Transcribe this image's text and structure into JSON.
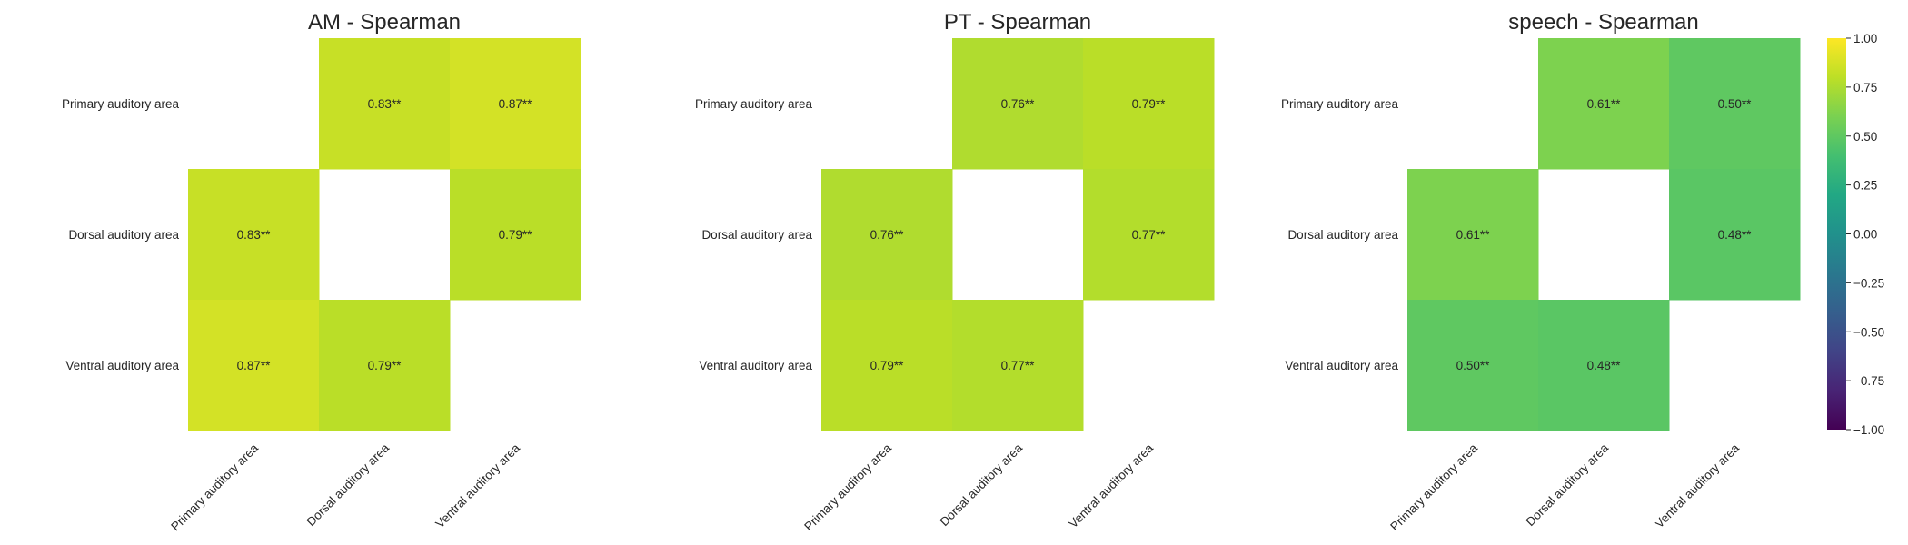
{
  "chart_data": [
    {
      "type": "heatmap",
      "title": "AM - Spearman",
      "row_labels": [
        "Primary auditory area",
        "Dorsal auditory area",
        "Ventral auditory area"
      ],
      "col_labels": [
        "Primary auditory area",
        "Dorsal auditory area",
        "Ventral auditory area"
      ],
      "values": [
        [
          null,
          0.83,
          0.87
        ],
        [
          0.83,
          null,
          0.79
        ],
        [
          0.87,
          0.79,
          null
        ]
      ],
      "cell_labels": [
        [
          "",
          "0.83**",
          "0.87**"
        ],
        [
          "0.83**",
          "",
          "0.79**"
        ],
        [
          "0.87**",
          "0.79**",
          ""
        ]
      ]
    },
    {
      "type": "heatmap",
      "title": "PT - Spearman",
      "row_labels": [
        "Primary auditory area",
        "Dorsal auditory area",
        "Ventral auditory area"
      ],
      "col_labels": [
        "Primary auditory area",
        "Dorsal auditory area",
        "Ventral auditory area"
      ],
      "values": [
        [
          null,
          0.76,
          0.79
        ],
        [
          0.76,
          null,
          0.77
        ],
        [
          0.79,
          0.77,
          null
        ]
      ],
      "cell_labels": [
        [
          "",
          "0.76**",
          "0.79**"
        ],
        [
          "0.76**",
          "",
          "0.77**"
        ],
        [
          "0.79**",
          "0.77**",
          ""
        ]
      ]
    },
    {
      "type": "heatmap",
      "title": "speech - Spearman",
      "row_labels": [
        "Primary auditory area",
        "Dorsal auditory area",
        "Ventral auditory area"
      ],
      "col_labels": [
        "Primary auditory area",
        "Dorsal auditory area",
        "Ventral auditory area"
      ],
      "values": [
        [
          null,
          0.61,
          0.5
        ],
        [
          0.61,
          null,
          0.48
        ],
        [
          0.5,
          0.48,
          null
        ]
      ],
      "cell_labels": [
        [
          "",
          "0.61**",
          "0.50**"
        ],
        [
          "0.61**",
          "",
          "0.48**"
        ],
        [
          "0.50**",
          "0.48**",
          ""
        ]
      ]
    }
  ],
  "colorbar": {
    "colormap": "viridis",
    "range": [
      -1.0,
      1.0
    ],
    "tick_values": [
      1.0,
      0.75,
      0.5,
      0.25,
      0.0,
      -0.25,
      -0.5,
      -0.75,
      -1.0
    ],
    "tick_labels": [
      "1.00",
      "0.75",
      "0.50",
      "0.25",
      "0.00",
      "−0.25",
      "−0.50",
      "−0.75",
      "−1.00"
    ]
  }
}
